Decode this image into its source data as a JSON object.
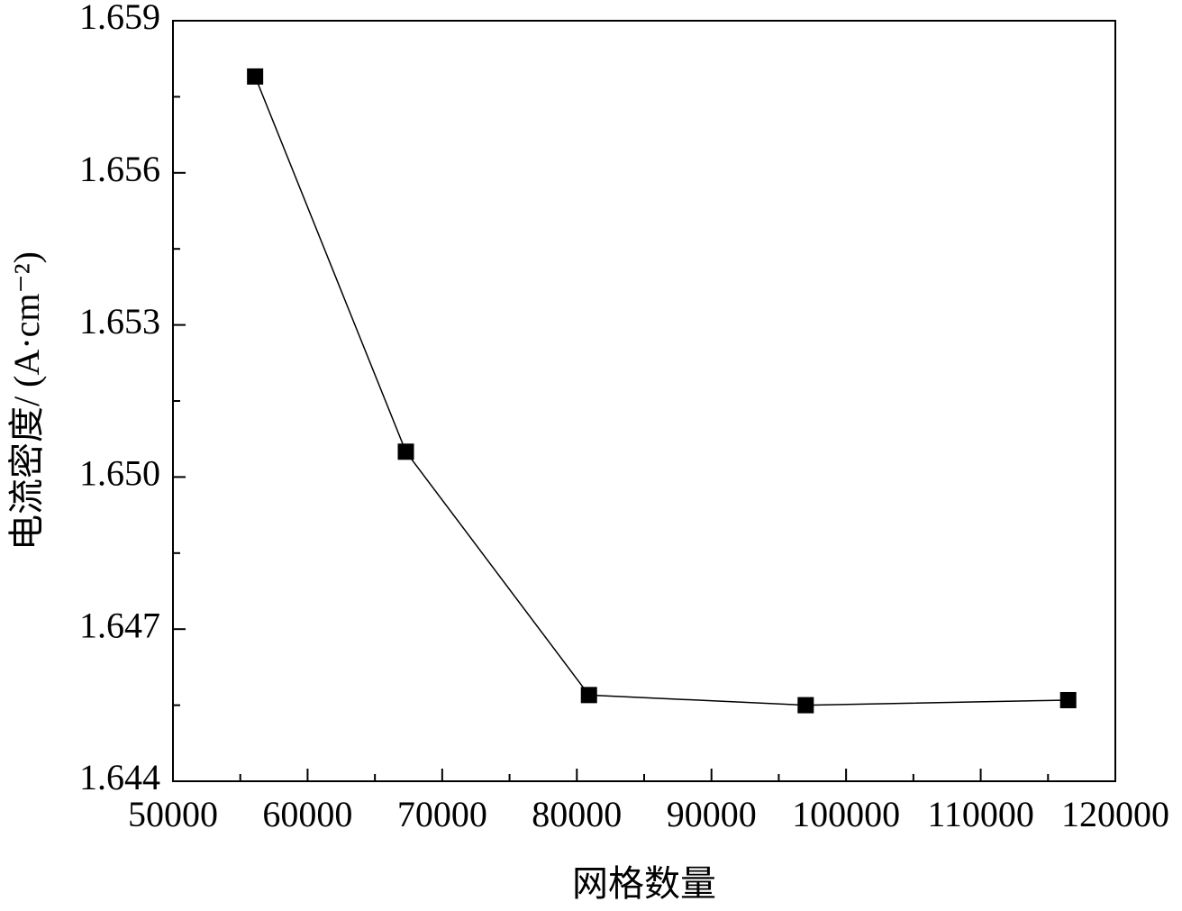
{
  "chart_data": {
    "type": "line",
    "x_label": "网格数量",
    "y_label": "电流密度/ (A·cm⁻²)",
    "series": [
      {
        "color": "#000000",
        "x": [
          56100,
          67300,
          80900,
          97000,
          116500
        ],
        "values": [
          1.6579,
          1.6505,
          1.6457,
          1.6455,
          1.6456
        ]
      }
    ],
    "xlim": [
      50000,
      120000
    ],
    "xticks": [
      50000,
      60000,
      70000,
      80000,
      90000,
      100000,
      110000,
      120000
    ],
    "ylim": [
      1.644,
      1.659
    ],
    "yticks": [
      1.644,
      1.647,
      {
        "value": 1.65,
        "label": "1.650"
      },
      1.653,
      1.656,
      1.659
    ]
  }
}
